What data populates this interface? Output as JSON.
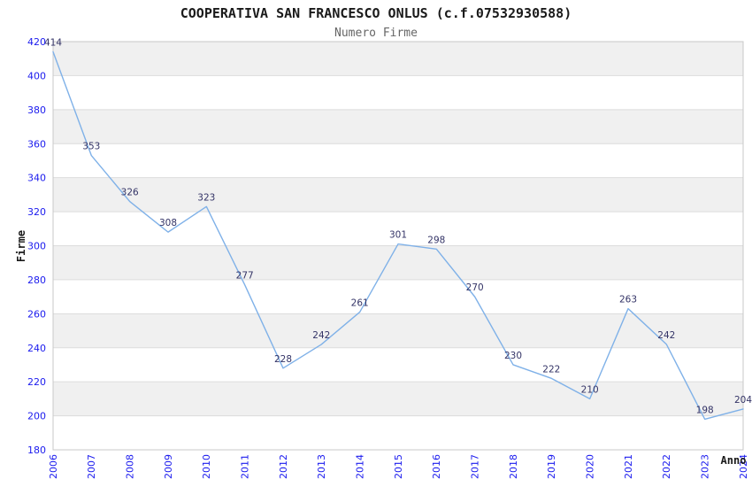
{
  "chart_data": {
    "type": "line",
    "title": "COOPERATIVA SAN FRANCESCO ONLUS (c.f.07532930588)",
    "subtitle": "Numero Firme",
    "xlabel": "Anno",
    "ylabel": "Firme",
    "x": [
      2006,
      2007,
      2008,
      2009,
      2010,
      2011,
      2012,
      2013,
      2014,
      2015,
      2016,
      2017,
      2018,
      2019,
      2020,
      2021,
      2022,
      2023,
      2024
    ],
    "values": [
      414,
      353,
      326,
      308,
      323,
      277,
      228,
      242,
      261,
      301,
      298,
      270,
      230,
      222,
      210,
      263,
      242,
      198,
      204
    ],
    "ylim": [
      180,
      420
    ],
    "ytick_step": 20,
    "grid": true,
    "legend": "none",
    "data_labels": true,
    "colors": {
      "line": "#7fb1e8",
      "tick_label": "#1a1aee",
      "data_label": "#333366",
      "band_fill": "#f0f0f0",
      "grid_line": "#dcdcdc",
      "plot_border": "#c8c8c8",
      "background": "#ffffff"
    }
  }
}
